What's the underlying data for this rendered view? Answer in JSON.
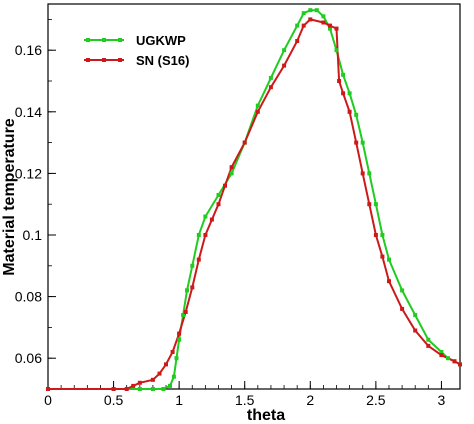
{
  "chart_data": {
    "type": "line",
    "title": "",
    "xlabel": "theta",
    "ylabel": "Material temperature",
    "xlim": [
      0,
      3.1416
    ],
    "ylim": [
      0.05,
      0.175
    ],
    "xticks": [
      "0",
      "0.5",
      "1",
      "1.5",
      "2",
      "2.5",
      "3"
    ],
    "yticks": [
      "0.06",
      "0.08",
      "0.1",
      "0.12",
      "0.14",
      "0.16"
    ],
    "grid": false,
    "legend_position": "top-left",
    "series": [
      {
        "name": "UGKWP",
        "color": "#20cc20",
        "marker": "square",
        "points": [
          [
            0.0,
            0.05
          ],
          [
            0.5,
            0.05
          ],
          [
            0.7,
            0.05
          ],
          [
            0.8,
            0.05
          ],
          [
            0.88,
            0.05
          ],
          [
            0.93,
            0.051
          ],
          [
            0.96,
            0.054
          ],
          [
            0.98,
            0.06
          ],
          [
            1.0,
            0.066
          ],
          [
            1.03,
            0.074
          ],
          [
            1.06,
            0.082
          ],
          [
            1.1,
            0.09
          ],
          [
            1.15,
            0.1
          ],
          [
            1.2,
            0.106
          ],
          [
            1.3,
            0.113
          ],
          [
            1.4,
            0.12
          ],
          [
            1.5,
            0.13
          ],
          [
            1.6,
            0.142
          ],
          [
            1.7,
            0.151
          ],
          [
            1.8,
            0.16
          ],
          [
            1.9,
            0.168
          ],
          [
            1.95,
            0.172
          ],
          [
            2.0,
            0.173
          ],
          [
            2.05,
            0.173
          ],
          [
            2.1,
            0.171
          ],
          [
            2.15,
            0.167
          ],
          [
            2.2,
            0.16
          ],
          [
            2.25,
            0.152
          ],
          [
            2.3,
            0.146
          ],
          [
            2.35,
            0.139
          ],
          [
            2.4,
            0.13
          ],
          [
            2.45,
            0.12
          ],
          [
            2.5,
            0.11
          ],
          [
            2.55,
            0.1
          ],
          [
            2.6,
            0.092
          ],
          [
            2.7,
            0.082
          ],
          [
            2.8,
            0.074
          ],
          [
            2.9,
            0.066
          ],
          [
            3.0,
            0.062
          ],
          [
            3.05,
            0.06
          ],
          [
            3.1,
            0.059
          ],
          [
            3.1416,
            0.058
          ]
        ]
      },
      {
        "name": "SN (S16)",
        "color": "#cc1a1a",
        "marker": "square",
        "points": [
          [
            0.0,
            0.05
          ],
          [
            0.5,
            0.05
          ],
          [
            0.6,
            0.05
          ],
          [
            0.65,
            0.051
          ],
          [
            0.7,
            0.052
          ],
          [
            0.8,
            0.053
          ],
          [
            0.85,
            0.055
          ],
          [
            0.9,
            0.058
          ],
          [
            0.95,
            0.062
          ],
          [
            1.0,
            0.068
          ],
          [
            1.05,
            0.075
          ],
          [
            1.1,
            0.083
          ],
          [
            1.15,
            0.092
          ],
          [
            1.2,
            0.1
          ],
          [
            1.25,
            0.105
          ],
          [
            1.3,
            0.11
          ],
          [
            1.35,
            0.116
          ],
          [
            1.4,
            0.122
          ],
          [
            1.5,
            0.13
          ],
          [
            1.6,
            0.14
          ],
          [
            1.7,
            0.148
          ],
          [
            1.8,
            0.155
          ],
          [
            1.9,
            0.163
          ],
          [
            1.95,
            0.168
          ],
          [
            2.0,
            0.17
          ],
          [
            2.1,
            0.169
          ],
          [
            2.15,
            0.168
          ],
          [
            2.2,
            0.167
          ],
          [
            2.22,
            0.15
          ],
          [
            2.25,
            0.146
          ],
          [
            2.3,
            0.14
          ],
          [
            2.35,
            0.13
          ],
          [
            2.4,
            0.12
          ],
          [
            2.45,
            0.11
          ],
          [
            2.5,
            0.1
          ],
          [
            2.55,
            0.093
          ],
          [
            2.6,
            0.085
          ],
          [
            2.7,
            0.076
          ],
          [
            2.8,
            0.069
          ],
          [
            2.9,
            0.064
          ],
          [
            3.0,
            0.061
          ],
          [
            3.1,
            0.059
          ],
          [
            3.1416,
            0.058
          ]
        ]
      }
    ]
  }
}
